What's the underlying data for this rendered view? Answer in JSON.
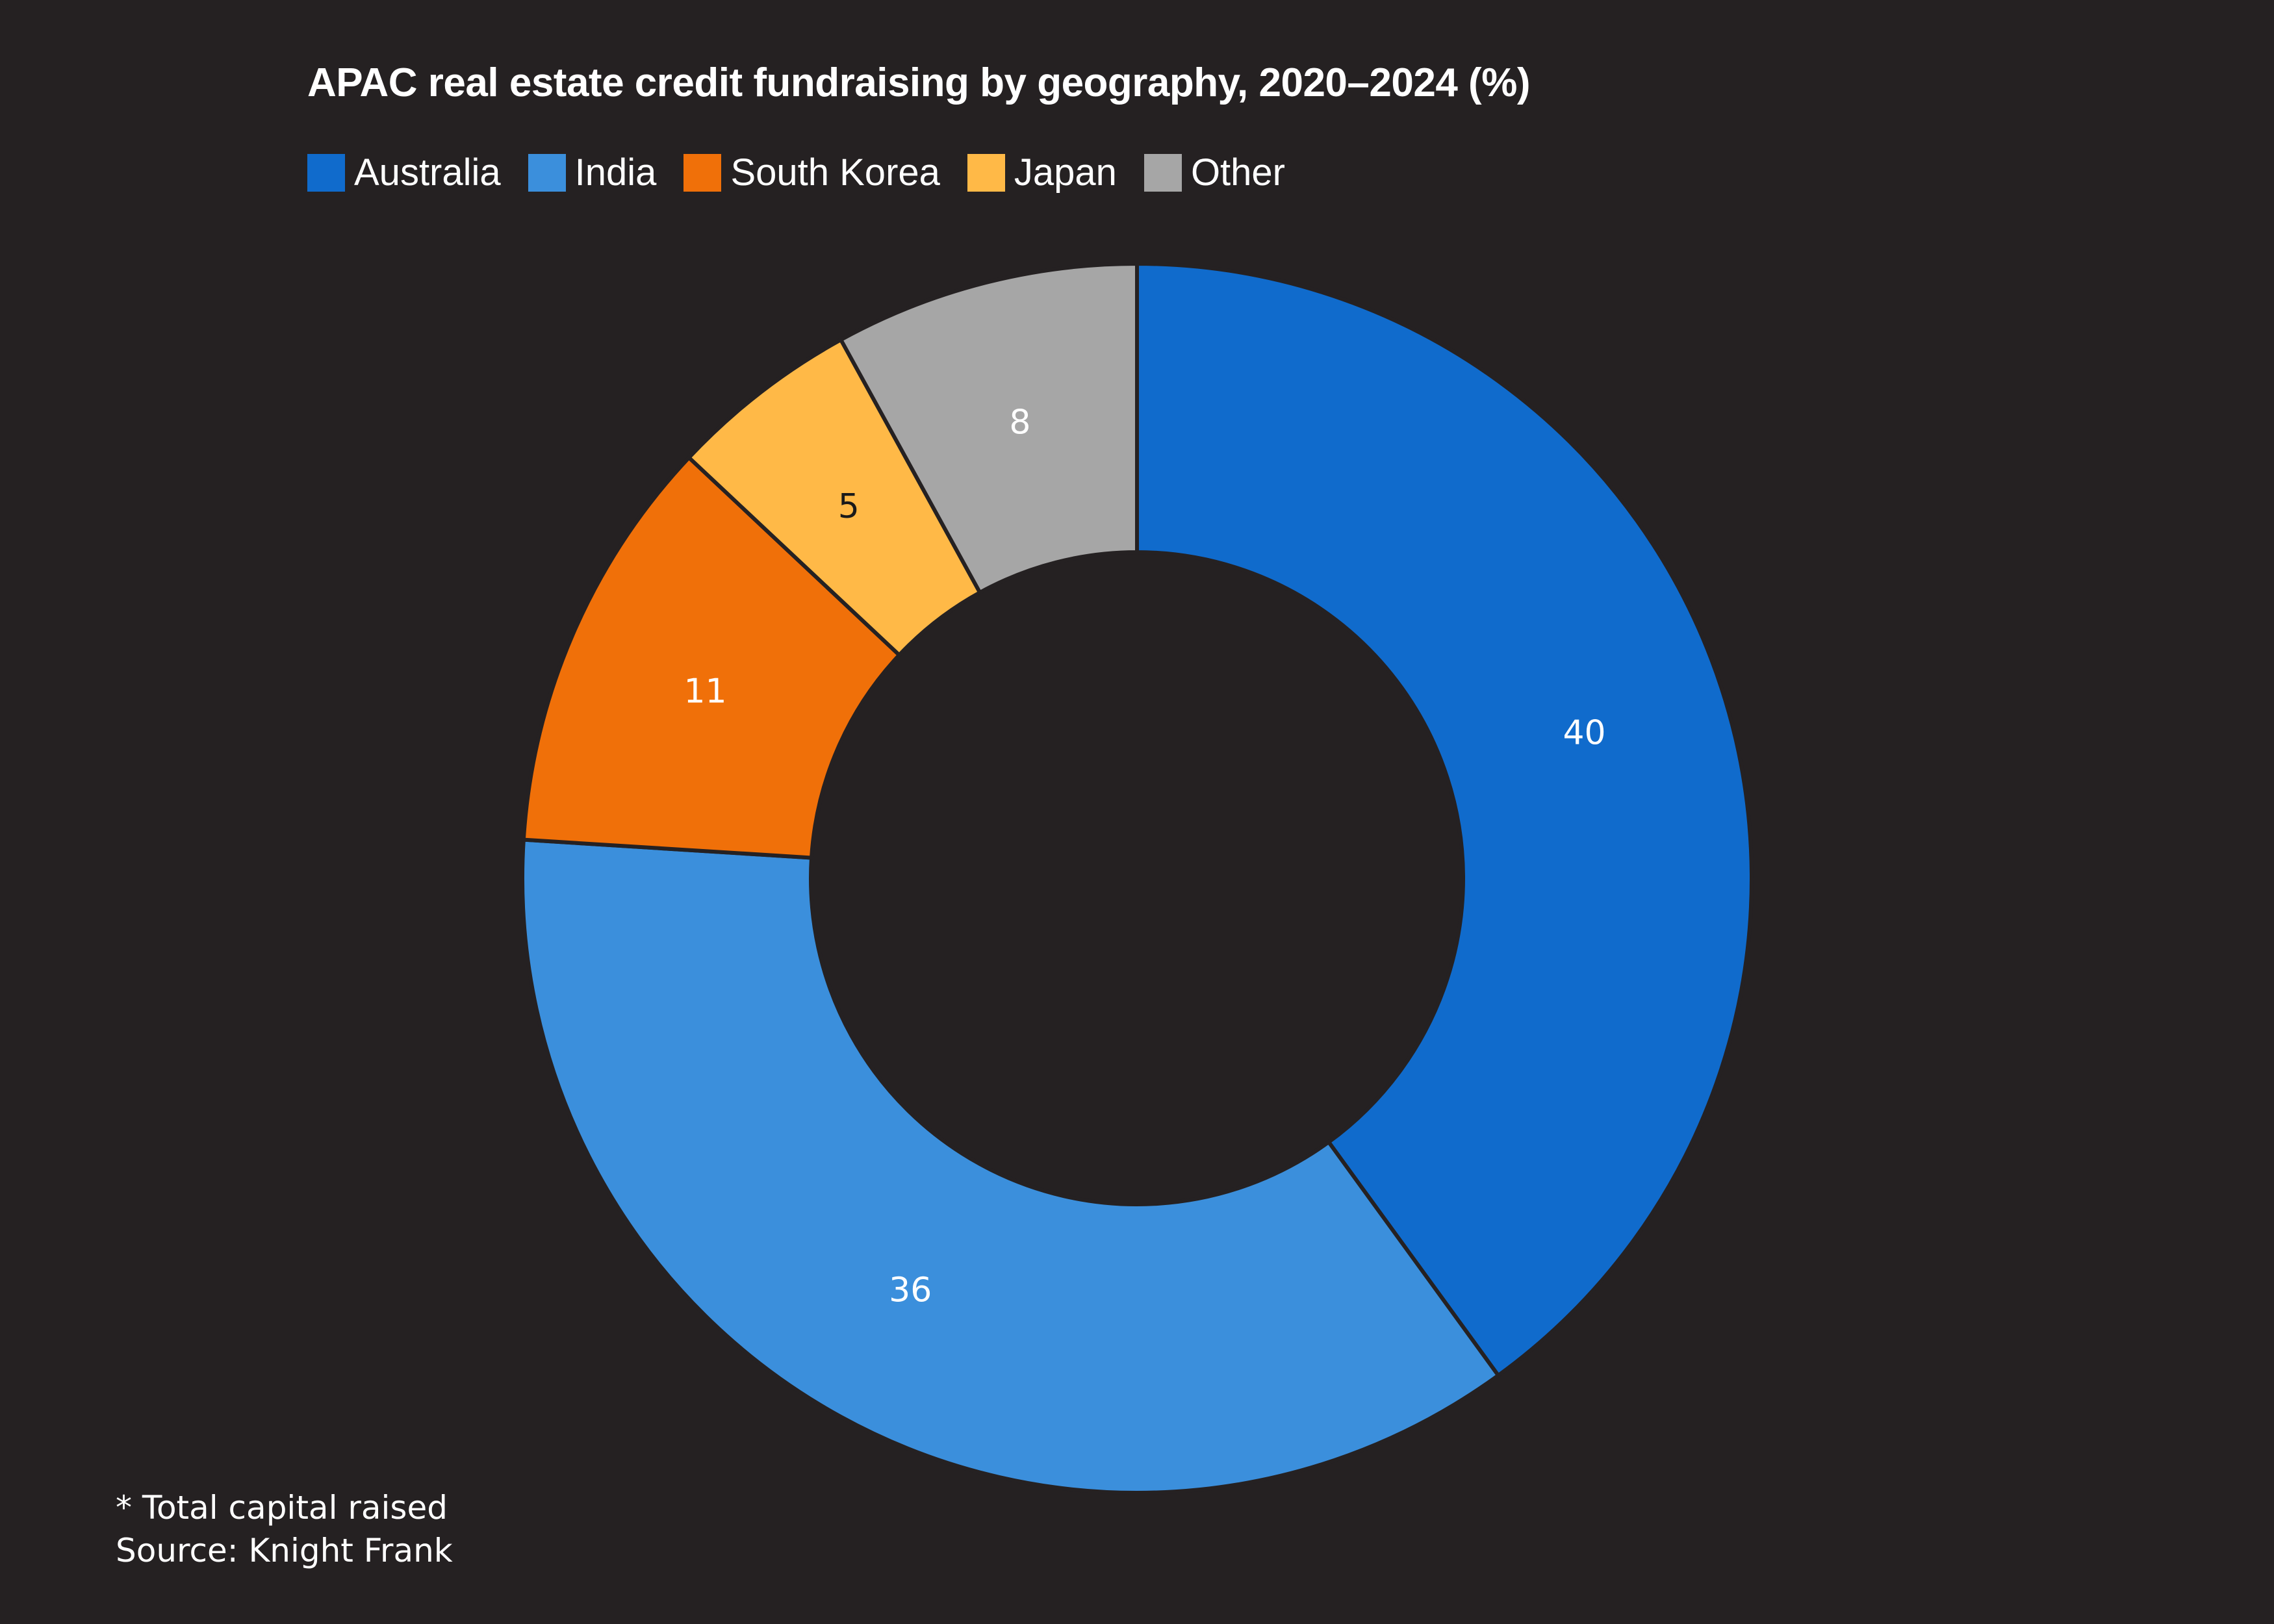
{
  "chart_data": {
    "type": "pie",
    "variant": "donut",
    "title": "APAC real estate credit fundraising by geography, 2020–2024 (%)",
    "categories": [
      "Australia",
      "India",
      "South Korea",
      "Japan",
      "Other"
    ],
    "values": [
      40,
      36,
      11,
      5,
      8
    ],
    "colors": [
      "#106bcc",
      "#3b8fdc",
      "#f07009",
      "#ffb947",
      "#a6a6a6"
    ],
    "label_colors": [
      "#ffffff",
      "#ffffff",
      "#ffffff",
      "#1a1a1a",
      "#ffffff"
    ],
    "legend_position": "top-left",
    "start_angle_deg": 0,
    "direction": "clockwise"
  },
  "footnote": {
    "note": "* Total capital raised",
    "source": "Source: Knight Frank"
  }
}
